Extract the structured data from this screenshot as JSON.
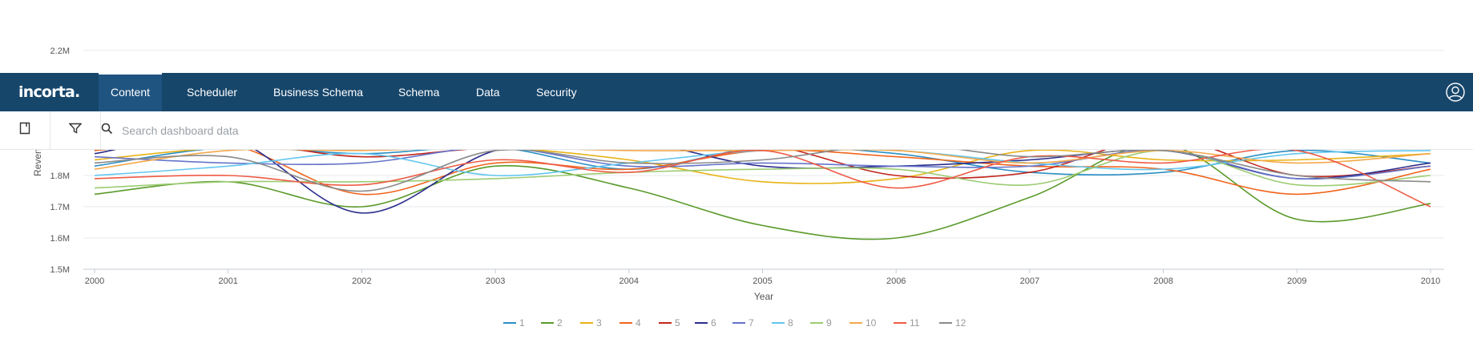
{
  "app": {
    "brand": "incorta.",
    "nav": [
      {
        "label": "Content",
        "active": true
      },
      {
        "label": "Scheduler",
        "active": false
      },
      {
        "label": "Business Schema",
        "active": false
      },
      {
        "label": "Schema",
        "active": false
      },
      {
        "label": "Data",
        "active": false
      },
      {
        "label": "Security",
        "active": false
      }
    ],
    "user_icon": "user-circle-icon"
  },
  "toolbar": {
    "bookmark_icon": "bookmark-icon",
    "filter_icon": "filter-icon",
    "search_icon": "search-icon",
    "search_placeholder": "Search dashboard data",
    "search_value": ""
  },
  "colors": {
    "nav_bg": "#17466b",
    "nav_active": "#205480"
  },
  "chart_data": {
    "type": "line",
    "title": "",
    "xlabel": "Year",
    "ylabel": "Revenue",
    "x": [
      2000,
      2001,
      2002,
      2003,
      2004,
      2005,
      2006,
      2007,
      2008,
      2009,
      2010
    ],
    "ylim": [
      1500000,
      2200000
    ],
    "yticks": [
      "1.5M",
      "1.6M",
      "1.7M",
      "1.8M",
      "2.2M"
    ],
    "grid": true,
    "legend_position": "bottom",
    "series": [
      {
        "name": "1",
        "color": "#2a8fc4",
        "values": [
          1830000,
          1890000,
          1870000,
          1890000,
          1820000,
          1890000,
          1870000,
          1810000,
          1810000,
          1880000,
          1840000
        ]
      },
      {
        "name": "2",
        "color": "#5a9a2a",
        "values": [
          1740000,
          1780000,
          1700000,
          1830000,
          1760000,
          1640000,
          1600000,
          1730000,
          1900000,
          1660000,
          1710000
        ]
      },
      {
        "name": "3",
        "color": "#e8b315",
        "values": [
          1850000,
          1890000,
          1890000,
          1890000,
          1850000,
          1780000,
          1790000,
          1880000,
          1850000,
          1850000,
          1870000
        ]
      },
      {
        "name": "4",
        "color": "#f0651d",
        "values": [
          1880000,
          1900000,
          1740000,
          1840000,
          1820000,
          1880000,
          1860000,
          1830000,
          1820000,
          1740000,
          1820000
        ]
      },
      {
        "name": "5",
        "color": "#c2261d",
        "values": [
          1890000,
          1910000,
          1860000,
          1890000,
          1890000,
          1900000,
          1800000,
          1810000,
          1920000,
          1800000,
          1830000
        ]
      },
      {
        "name": "6",
        "color": "#2b2e8c",
        "values": [
          1870000,
          1920000,
          1680000,
          1880000,
          1910000,
          1830000,
          1830000,
          1850000,
          1880000,
          1790000,
          1840000
        ]
      },
      {
        "name": "7",
        "color": "#6674c9",
        "values": [
          1860000,
          1840000,
          1840000,
          1890000,
          1830000,
          1840000,
          1830000,
          1830000,
          1880000,
          1790000,
          1830000
        ]
      },
      {
        "name": "8",
        "color": "#63c7ee",
        "values": [
          1800000,
          1830000,
          1870000,
          1800000,
          1840000,
          1880000,
          1880000,
          1840000,
          1820000,
          1870000,
          1880000
        ]
      },
      {
        "name": "9",
        "color": "#9ccc72",
        "values": [
          1760000,
          1780000,
          1780000,
          1790000,
          1810000,
          1820000,
          1820000,
          1770000,
          1880000,
          1770000,
          1800000
        ]
      },
      {
        "name": "10",
        "color": "#f4a84a",
        "values": [
          1820000,
          1880000,
          1880000,
          1890000,
          1880000,
          1880000,
          1880000,
          1840000,
          1880000,
          1840000,
          1870000
        ]
      },
      {
        "name": "11",
        "color": "#ee5b45",
        "values": [
          1790000,
          1800000,
          1770000,
          1850000,
          1810000,
          1880000,
          1760000,
          1860000,
          1840000,
          1880000,
          1700000
        ]
      },
      {
        "name": "12",
        "color": "#8a8a8a",
        "values": [
          1840000,
          1860000,
          1750000,
          1880000,
          1840000,
          1850000,
          1900000,
          1860000,
          1880000,
          1800000,
          1780000
        ]
      }
    ]
  }
}
